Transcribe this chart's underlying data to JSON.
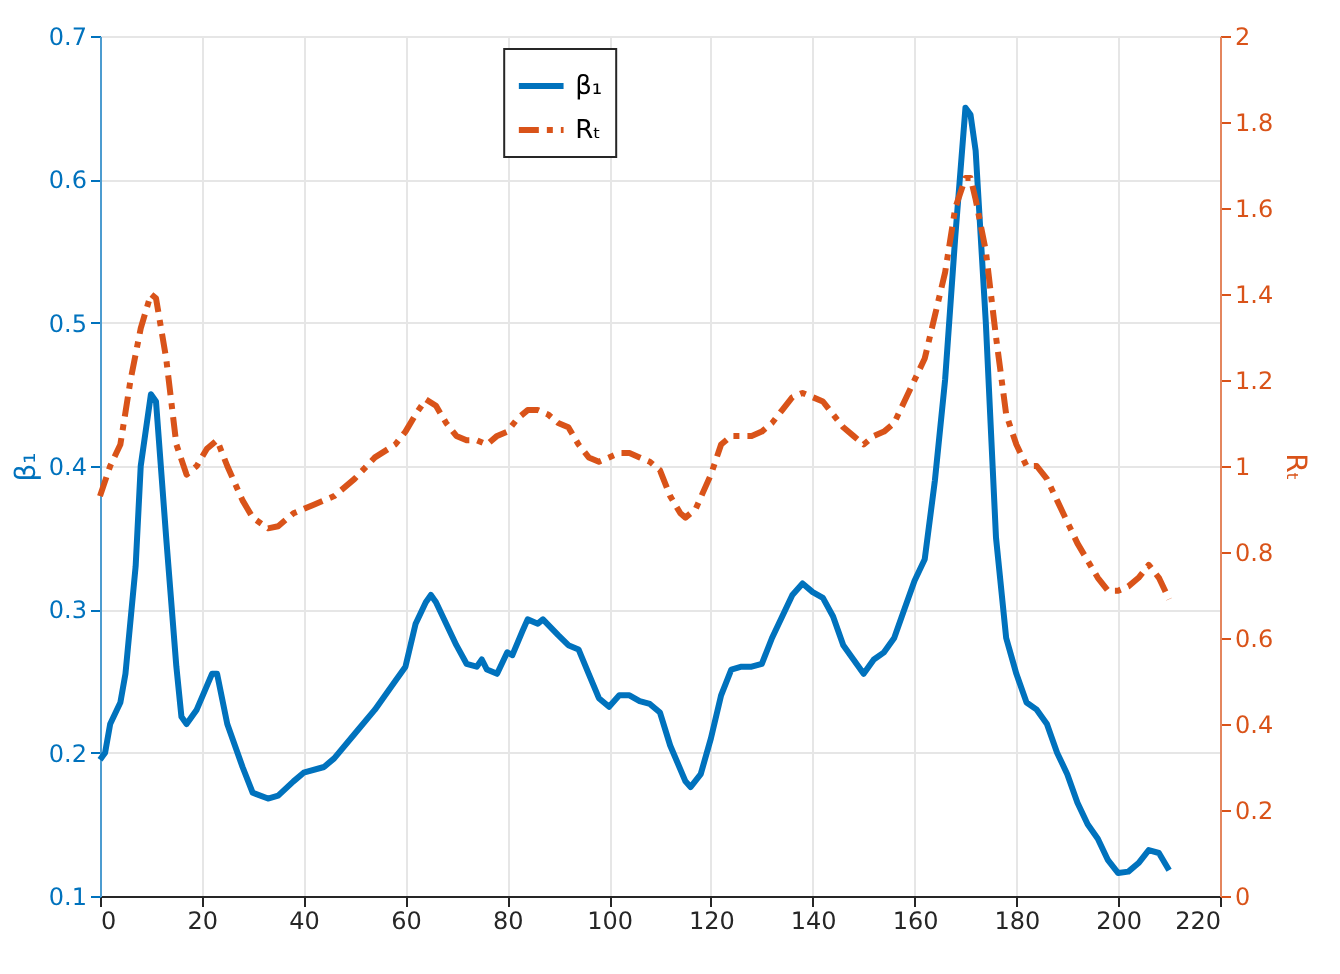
{
  "chart_data": {
    "type": "line",
    "ylabel": "β₁",
    "y2label": "Rₜ",
    "xlim": [
      0,
      220
    ],
    "xticks": [
      0,
      20,
      40,
      60,
      80,
      100,
      120,
      140,
      160,
      180,
      200,
      220
    ],
    "ylim": [
      0.1,
      0.7
    ],
    "yticks": [
      0.1,
      0.2,
      0.3,
      0.4,
      0.5,
      0.6,
      0.7
    ],
    "y2lim": [
      0,
      2
    ],
    "y2ticks": [
      0,
      0.2,
      0.4,
      0.6,
      0.8,
      1,
      1.2,
      1.4,
      1.6,
      1.8,
      2
    ],
    "grid": true,
    "legend": "top",
    "series": [
      {
        "name": "β₁",
        "color": "#0072bd",
        "line_style": "solid",
        "x": [
          0,
          1,
          2,
          4,
          5,
          7,
          8,
          10,
          11,
          13,
          15,
          16,
          17,
          19,
          22,
          23,
          25,
          28,
          30,
          33,
          35,
          38,
          40,
          44,
          46,
          50,
          54,
          58,
          60,
          62,
          64,
          65,
          66,
          68,
          70,
          72,
          74,
          75,
          76,
          78,
          80,
          81,
          83,
          84,
          86,
          87,
          90,
          92,
          94,
          96,
          98,
          100,
          102,
          104,
          106,
          108,
          110,
          112,
          115,
          116,
          118,
          120,
          122,
          124,
          126,
          128,
          130,
          132,
          134,
          136,
          138,
          140,
          142,
          144,
          146,
          148,
          150,
          152,
          154,
          156,
          158,
          160,
          162,
          164,
          166,
          168,
          170,
          171,
          172,
          174,
          176,
          178,
          180,
          182,
          184,
          186,
          188,
          190,
          192,
          194,
          196,
          198,
          200,
          202,
          204,
          206,
          208,
          210
        ],
        "values": [
          0.195,
          0.2,
          0.22,
          0.235,
          0.255,
          0.33,
          0.4,
          0.45,
          0.445,
          0.35,
          0.26,
          0.225,
          0.22,
          0.23,
          0.255,
          0.255,
          0.22,
          0.19,
          0.172,
          0.168,
          0.17,
          0.18,
          0.186,
          0.19,
          0.196,
          0.213,
          0.23,
          0.25,
          0.26,
          0.29,
          0.305,
          0.31,
          0.305,
          0.29,
          0.275,
          0.262,
          0.26,
          0.265,
          0.258,
          0.255,
          0.27,
          0.268,
          0.285,
          0.293,
          0.29,
          0.293,
          0.282,
          0.275,
          0.272,
          0.255,
          0.238,
          0.232,
          0.24,
          0.24,
          0.236,
          0.234,
          0.228,
          0.205,
          0.18,
          0.176,
          0.185,
          0.21,
          0.24,
          0.258,
          0.26,
          0.26,
          0.262,
          0.28,
          0.295,
          0.31,
          0.318,
          0.312,
          0.308,
          0.295,
          0.275,
          0.265,
          0.255,
          0.265,
          0.27,
          0.28,
          0.3,
          0.32,
          0.335,
          0.39,
          0.46,
          0.56,
          0.65,
          0.645,
          0.62,
          0.5,
          0.35,
          0.28,
          0.255,
          0.235,
          0.23,
          0.22,
          0.2,
          0.185,
          0.165,
          0.15,
          0.14,
          0.125,
          0.116,
          0.117,
          0.123,
          0.132,
          0.13,
          0.118
        ]
      },
      {
        "name": "Rₜ",
        "color": "#d95319",
        "axis": "y2",
        "line_style": "dashed",
        "x": [
          0,
          2,
          4,
          6,
          8,
          10,
          11,
          13,
          15,
          17,
          19,
          21,
          23,
          25,
          28,
          30,
          33,
          35,
          38,
          42,
          46,
          50,
          54,
          58,
          60,
          62,
          64,
          66,
          68,
          70,
          72,
          74,
          76,
          78,
          80,
          82,
          84,
          86,
          88,
          90,
          92,
          94,
          96,
          98,
          100,
          102,
          104,
          106,
          108,
          110,
          112,
          114,
          115,
          117,
          120,
          122,
          124,
          126,
          128,
          130,
          132,
          134,
          136,
          138,
          140,
          142,
          144,
          146,
          148,
          150,
          152,
          154,
          156,
          158,
          160,
          162,
          164,
          166,
          168,
          170,
          171,
          172,
          174,
          176,
          178,
          180,
          182,
          184,
          186,
          188,
          190,
          192,
          194,
          196,
          198,
          200,
          202,
          204,
          206,
          208,
          210
        ],
        "values": [
          0.93,
          1.0,
          1.05,
          1.2,
          1.32,
          1.4,
          1.39,
          1.25,
          1.05,
          0.98,
          1.0,
          1.04,
          1.06,
          1.0,
          0.92,
          0.88,
          0.855,
          0.86,
          0.89,
          0.91,
          0.93,
          0.97,
          1.02,
          1.05,
          1.08,
          1.12,
          1.155,
          1.14,
          1.1,
          1.07,
          1.06,
          1.06,
          1.05,
          1.07,
          1.08,
          1.11,
          1.13,
          1.13,
          1.12,
          1.1,
          1.09,
          1.05,
          1.02,
          1.01,
          1.02,
          1.03,
          1.03,
          1.02,
          1.01,
          0.99,
          0.93,
          0.89,
          0.88,
          0.9,
          0.98,
          1.05,
          1.07,
          1.07,
          1.07,
          1.08,
          1.1,
          1.13,
          1.16,
          1.17,
          1.16,
          1.15,
          1.12,
          1.09,
          1.07,
          1.05,
          1.07,
          1.08,
          1.1,
          1.15,
          1.2,
          1.25,
          1.35,
          1.45,
          1.6,
          1.67,
          1.67,
          1.62,
          1.5,
          1.3,
          1.12,
          1.05,
          1.0,
          1.0,
          0.97,
          0.92,
          0.87,
          0.82,
          0.78,
          0.74,
          0.71,
          0.71,
          0.72,
          0.74,
          0.77,
          0.74,
          0.69
        ]
      }
    ]
  }
}
